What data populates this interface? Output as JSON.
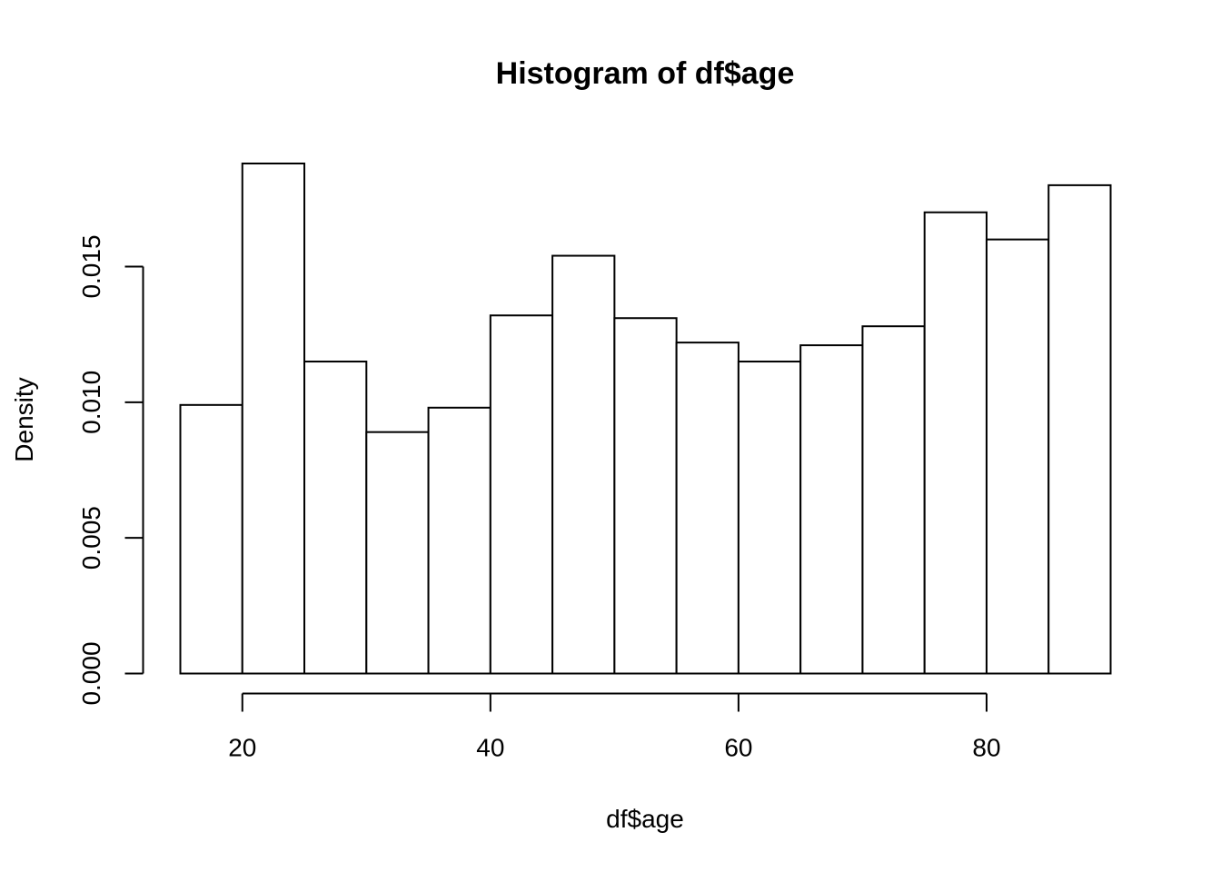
{
  "chart_data": {
    "type": "bar",
    "title": "Histogram of df$age",
    "xlabel": "df$age",
    "ylabel": "Density",
    "bins": [
      {
        "from": 15,
        "to": 20,
        "density": 0.0099
      },
      {
        "from": 20,
        "to": 25,
        "density": 0.0188
      },
      {
        "from": 25,
        "to": 30,
        "density": 0.0115
      },
      {
        "from": 30,
        "to": 35,
        "density": 0.0089
      },
      {
        "from": 35,
        "to": 40,
        "density": 0.0098
      },
      {
        "from": 40,
        "to": 45,
        "density": 0.0132
      },
      {
        "from": 45,
        "to": 50,
        "density": 0.0154
      },
      {
        "from": 50,
        "to": 55,
        "density": 0.0131
      },
      {
        "from": 55,
        "to": 60,
        "density": 0.0122
      },
      {
        "from": 60,
        "to": 65,
        "density": 0.0115
      },
      {
        "from": 65,
        "to": 70,
        "density": 0.0121
      },
      {
        "from": 70,
        "to": 75,
        "density": 0.0128
      },
      {
        "from": 75,
        "to": 80,
        "density": 0.017
      },
      {
        "from": 80,
        "to": 85,
        "density": 0.016
      },
      {
        "from": 85,
        "to": 90,
        "density": 0.018
      }
    ],
    "x_ticks": [
      20,
      40,
      60,
      80
    ],
    "x_tick_labels": [
      "20",
      "40",
      "60",
      "80"
    ],
    "y_ticks": [
      0,
      0.005,
      0.01,
      0.015
    ],
    "y_tick_labels": [
      "0.000",
      "0.005",
      "0.010",
      "0.015"
    ],
    "xlim": [
      15,
      90
    ],
    "ylim": [
      0,
      0.0188
    ],
    "grid": false,
    "legend": "none",
    "colors": {
      "bar_fill": "#ffffff",
      "bar_stroke": "#000000"
    }
  }
}
